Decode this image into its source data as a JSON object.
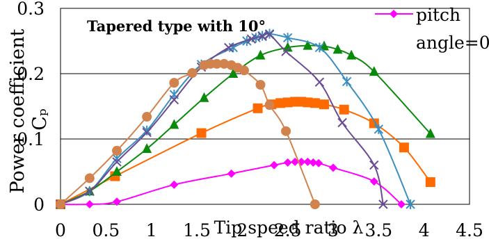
{
  "chart_data": {
    "type": "line",
    "title": "Tapered type with 10°",
    "xlabel": "Tip speed ratio  λ",
    "ylabel": "Power coefficient",
    "ylabel_symbol": "Cₚ",
    "xlim": [
      0,
      4.5
    ],
    "ylim": [
      0,
      0.3
    ],
    "x_ticks": [
      "0",
      "0.5",
      "1",
      "1.5",
      "2",
      "2.5",
      "3",
      "3.5",
      "4",
      "4.5"
    ],
    "y_ticks": [
      "0",
      "0.1",
      "0.2",
      "0.3"
    ],
    "legend_visible_text": [
      "pitch",
      "angle=0"
    ],
    "grid": "horizontal",
    "series": [
      {
        "name": "pitch angle=0",
        "color": "#ff00ff",
        "marker": "diamond",
        "points": [
          [
            0,
            0
          ],
          [
            0.32,
            0
          ],
          [
            0.62,
            0.004
          ],
          [
            1.25,
            0.03
          ],
          [
            1.88,
            0.047
          ],
          [
            2.35,
            0.06
          ],
          [
            2.5,
            0.064
          ],
          [
            2.58,
            0.065
          ],
          [
            2.65,
            0.065
          ],
          [
            2.72,
            0.065
          ],
          [
            2.78,
            0.064
          ],
          [
            2.84,
            0.063
          ],
          [
            3.0,
            0.056
          ],
          [
            3.45,
            0.035
          ],
          [
            3.75,
            0
          ]
        ]
      },
      {
        "color": "#ff6a00",
        "marker": "square",
        "points": [
          [
            0,
            0
          ],
          [
            0.6,
            0.043
          ],
          [
            1.55,
            0.109
          ],
          [
            2.17,
            0.147
          ],
          [
            2.32,
            0.153
          ],
          [
            2.42,
            0.155
          ],
          [
            2.5,
            0.156
          ],
          [
            2.58,
            0.157
          ],
          [
            2.65,
            0.157
          ],
          [
            2.72,
            0.156
          ],
          [
            2.8,
            0.155
          ],
          [
            2.9,
            0.153
          ],
          [
            3.12,
            0.145
          ],
          [
            3.45,
            0.124
          ],
          [
            3.78,
            0.087
          ],
          [
            4.07,
            0.034
          ]
        ]
      },
      {
        "color": "#0a8a0a",
        "marker": "triangle",
        "points": [
          [
            0,
            0
          ],
          [
            0.32,
            0.02
          ],
          [
            0.62,
            0.05
          ],
          [
            0.95,
            0.085
          ],
          [
            1.25,
            0.122
          ],
          [
            1.58,
            0.163
          ],
          [
            1.9,
            0.2
          ],
          [
            2.2,
            0.228
          ],
          [
            2.5,
            0.24
          ],
          [
            2.72,
            0.243
          ],
          [
            2.9,
            0.242
          ],
          [
            3.05,
            0.237
          ],
          [
            3.2,
            0.228
          ],
          [
            3.45,
            0.203
          ],
          [
            4.07,
            0.108
          ]
        ]
      },
      {
        "color": "#3a8fc0",
        "marker": "star",
        "points": [
          [
            0,
            0
          ],
          [
            0.32,
            0.02
          ],
          [
            0.62,
            0.07
          ],
          [
            0.95,
            0.113
          ],
          [
            1.25,
            0.168
          ],
          [
            1.55,
            0.214
          ],
          [
            1.9,
            0.24
          ],
          [
            2.05,
            0.25
          ],
          [
            2.15,
            0.255
          ],
          [
            2.22,
            0.258
          ],
          [
            2.3,
            0.261
          ],
          [
            2.5,
            0.255
          ],
          [
            2.85,
            0.24
          ],
          [
            3.15,
            0.188
          ],
          [
            3.5,
            0.115
          ],
          [
            3.85,
            0
          ]
        ]
      },
      {
        "color": "#6a4c93",
        "marker": "x",
        "points": [
          [
            0,
            0
          ],
          [
            0.32,
            0.02
          ],
          [
            0.62,
            0.065
          ],
          [
            0.95,
            0.11
          ],
          [
            1.25,
            0.16
          ],
          [
            1.55,
            0.21
          ],
          [
            1.85,
            0.24
          ],
          [
            2.1,
            0.253
          ],
          [
            2.22,
            0.257
          ],
          [
            2.3,
            0.26
          ],
          [
            2.48,
            0.234
          ],
          [
            2.85,
            0.187
          ],
          [
            3.1,
            0.125
          ],
          [
            3.45,
            0.06
          ],
          [
            3.55,
            0
          ]
        ]
      },
      {
        "color": "#d2824d",
        "marker": "circle",
        "points": [
          [
            0,
            0
          ],
          [
            0.32,
            0.04
          ],
          [
            0.62,
            0.082
          ],
          [
            0.95,
            0.134
          ],
          [
            1.25,
            0.186
          ],
          [
            1.45,
            0.201
          ],
          [
            1.58,
            0.213
          ],
          [
            1.65,
            0.215
          ],
          [
            1.72,
            0.215
          ],
          [
            1.8,
            0.215
          ],
          [
            1.88,
            0.213
          ],
          [
            1.95,
            0.209
          ],
          [
            2.02,
            0.205
          ],
          [
            2.2,
            0.183
          ],
          [
            2.3,
            0.152
          ],
          [
            2.48,
            0.112
          ],
          [
            2.8,
            0
          ]
        ]
      }
    ]
  }
}
